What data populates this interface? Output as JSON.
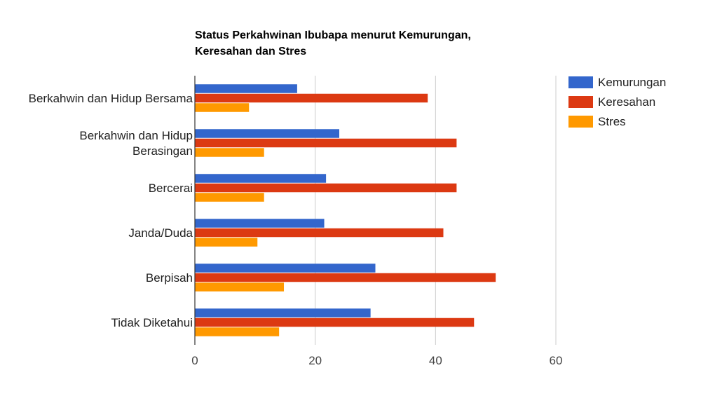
{
  "chart_data": {
    "type": "bar",
    "orientation": "horizontal",
    "title_lines": [
      "Status Perkahwinan Ibubapa menurut Kemurungan,",
      "Keresahan dan Stres"
    ],
    "categories": [
      [
        "Berkahwin dan Hidup Bersama"
      ],
      [
        "Berkahwin dan Hidup",
        "Berasingan"
      ],
      [
        "Bercerai"
      ],
      [
        "Janda/Duda"
      ],
      [
        "Berpisah"
      ],
      [
        "Tidak Diketahui"
      ]
    ],
    "series": [
      {
        "name": "Kemurungan",
        "color": "#3366cc",
        "values": [
          17,
          24,
          21.8,
          21.5,
          30,
          29.2
        ]
      },
      {
        "name": "Keresahan",
        "color": "#dc3912",
        "values": [
          38.7,
          43.5,
          43.5,
          41.3,
          50,
          46.4
        ]
      },
      {
        "name": "Stres",
        "color": "#ff9900",
        "values": [
          9,
          11.5,
          11.5,
          10.4,
          14.8,
          14
        ]
      }
    ],
    "xlim": [
      0,
      60
    ],
    "xticks": [
      "0",
      "20",
      "40",
      "60"
    ],
    "grid": true,
    "legend_position": "right"
  }
}
